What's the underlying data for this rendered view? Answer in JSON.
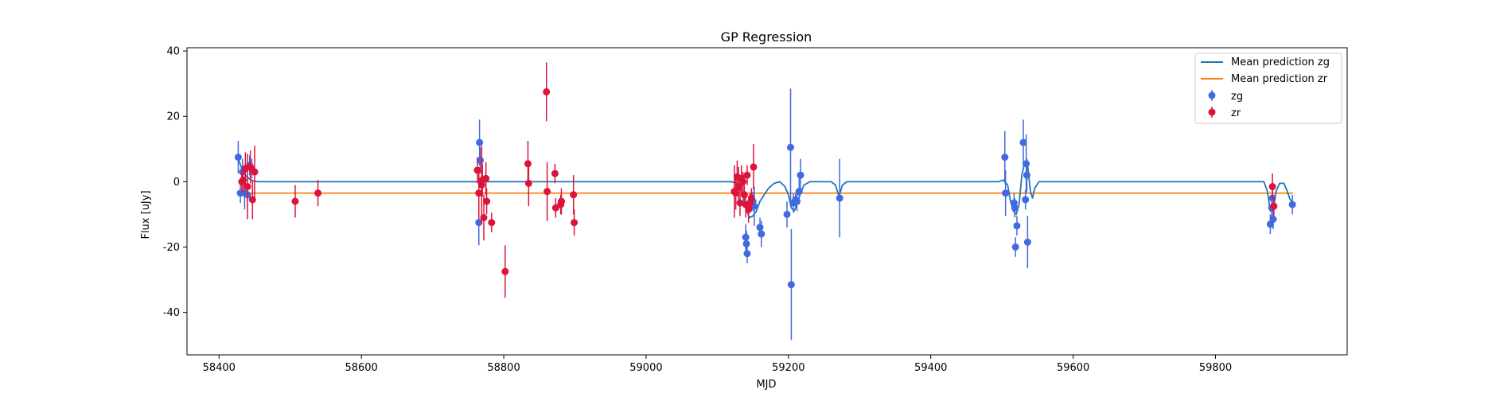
{
  "chart_data": {
    "type": "scatter",
    "title": "GP Regression",
    "xlabel": "MJD",
    "ylabel": "Flux [uJy]",
    "xlim": [
      58355,
      59985
    ],
    "ylim": [
      -53,
      41
    ],
    "xticks": [
      58400,
      58600,
      58800,
      59000,
      59200,
      59400,
      59600,
      59800
    ],
    "yticks": [
      -40,
      -20,
      0,
      20,
      40
    ],
    "grid": false,
    "legend_position": "top-right",
    "colors": {
      "zg": "#4169e1",
      "zr": "#dc143c",
      "mean_zg": "#1f77b4",
      "mean_zr": "#ff7f0e"
    },
    "legend": [
      "Mean prediction zg",
      "Mean prediction zr",
      "zg",
      "zr"
    ],
    "mean_zr_level": -3.5,
    "mean_zg": [
      [
        58427,
        7
      ],
      [
        58432,
        4
      ],
      [
        58437,
        2
      ],
      [
        58442,
        1
      ],
      [
        58448,
        0.2
      ],
      [
        58455,
        0
      ],
      [
        59120,
        0
      ],
      [
        59128,
        -0.5
      ],
      [
        59134,
        -3
      ],
      [
        59140,
        -8
      ],
      [
        59145,
        -11
      ],
      [
        59150,
        -10.5
      ],
      [
        59155,
        -9
      ],
      [
        59160,
        -6
      ],
      [
        59166,
        -4
      ],
      [
        59172,
        -2
      ],
      [
        59180,
        -0.5
      ],
      [
        59188,
        0
      ],
      [
        59195,
        -1.5
      ],
      [
        59200,
        -4
      ],
      [
        59204,
        -8
      ],
      [
        59208,
        -9
      ],
      [
        59212,
        -7
      ],
      [
        59217,
        -3.5
      ],
      [
        59222,
        -1
      ],
      [
        59230,
        0
      ],
      [
        59260,
        0
      ],
      [
        59266,
        -1
      ],
      [
        59271,
        -4.5
      ],
      [
        59276,
        -1
      ],
      [
        59282,
        0
      ],
      [
        59495,
        0
      ],
      [
        59502,
        0.5
      ],
      [
        59508,
        -1
      ],
      [
        59512,
        -6
      ],
      [
        59516,
        -9
      ],
      [
        59520,
        -10
      ],
      [
        59524,
        -7
      ],
      [
        59528,
        2
      ],
      [
        59532,
        6
      ],
      [
        59536,
        5
      ],
      [
        59540,
        -3
      ],
      [
        59543,
        -5
      ],
      [
        59546,
        -2
      ],
      [
        59552,
        0
      ],
      [
        59868,
        0
      ],
      [
        59873,
        -3
      ],
      [
        59877,
        -9
      ],
      [
        59881,
        -9
      ],
      [
        59885,
        -3
      ],
      [
        59890,
        -0.5
      ],
      [
        59896,
        -0.5
      ],
      [
        59900,
        -2.5
      ],
      [
        59905,
        -5.5
      ],
      [
        59909,
        -6.5
      ]
    ],
    "series": [
      {
        "name": "zg",
        "points": [
          [
            58427,
            7.5,
            5
          ],
          [
            58430,
            -3.5,
            3
          ],
          [
            58433,
            3,
            4
          ],
          [
            58436,
            -3.5,
            5
          ],
          [
            58440,
            -4,
            2
          ],
          [
            58443,
            5,
            3
          ],
          [
            58446,
            4,
            3
          ],
          [
            58765,
            -12.5,
            7
          ],
          [
            58766,
            12,
            7
          ],
          [
            58767,
            6.5,
            4
          ],
          [
            59140,
            -17,
            4
          ],
          [
            59141,
            -19,
            4
          ],
          [
            59142,
            -22,
            3
          ],
          [
            59150,
            -6,
            3
          ],
          [
            59152,
            -7.5,
            6
          ],
          [
            59160,
            -14,
            3
          ],
          [
            59162,
            -16,
            4
          ],
          [
            59198,
            -10,
            4
          ],
          [
            59203,
            10.5,
            18
          ],
          [
            59204,
            -31.5,
            17
          ],
          [
            59207,
            -6.5,
            3
          ],
          [
            59210,
            -5.5,
            2
          ],
          [
            59212,
            -6,
            3
          ],
          [
            59215,
            -3,
            4
          ],
          [
            59217,
            2,
            5
          ],
          [
            59272,
            -5,
            12
          ],
          [
            59504,
            7.5,
            8
          ],
          [
            59505,
            -3.5,
            7
          ],
          [
            59517,
            -6.5,
            3
          ],
          [
            59518,
            -8,
            3
          ],
          [
            59519,
            -20,
            3
          ],
          [
            59521,
            -13.5,
            3
          ],
          [
            59530,
            12,
            7
          ],
          [
            59533,
            -5.5,
            3
          ],
          [
            59534,
            5.5,
            9
          ],
          [
            59535,
            2,
            5
          ],
          [
            59536,
            -18.5,
            8
          ],
          [
            59877,
            -13,
            3
          ],
          [
            59879,
            -8,
            3
          ],
          [
            59880,
            -5,
            3
          ],
          [
            59881,
            -11.5,
            3
          ],
          [
            59908,
            -7,
            3
          ]
        ]
      },
      {
        "name": "zr",
        "points": [
          [
            58432,
            0,
            3
          ],
          [
            58434,
            0.5,
            4
          ],
          [
            58437,
            4,
            5
          ],
          [
            58440,
            -1.5,
            10
          ],
          [
            58444,
            4.5,
            5
          ],
          [
            58447,
            -5.5,
            6
          ],
          [
            58450,
            3,
            8
          ],
          [
            58507,
            -6,
            5
          ],
          [
            58539,
            -3.5,
            4
          ],
          [
            58763,
            3.5,
            4
          ],
          [
            58765,
            -3.5,
            8
          ],
          [
            58769,
            -1,
            12
          ],
          [
            58770,
            0.5,
            5
          ],
          [
            58772,
            -11,
            7
          ],
          [
            58775,
            1,
            5
          ],
          [
            58776,
            -6,
            4
          ],
          [
            58783,
            -12.5,
            3
          ],
          [
            58802,
            -27.5,
            8
          ],
          [
            58834,
            5.5,
            7
          ],
          [
            58835,
            -0.5,
            7
          ],
          [
            58860,
            27.5,
            9
          ],
          [
            58861,
            -3,
            9
          ],
          [
            58872,
            2.5,
            3
          ],
          [
            58873,
            -8,
            3
          ],
          [
            58880,
            -7,
            3
          ],
          [
            58881,
            -6,
            4
          ],
          [
            58898,
            -4,
            6
          ],
          [
            58899,
            -12.5,
            4
          ],
          [
            59124,
            -3,
            8
          ],
          [
            59126,
            -3.5,
            5
          ],
          [
            59128,
            1.5,
            5
          ],
          [
            59130,
            -1.5,
            6
          ],
          [
            59132,
            -6.5,
            4
          ],
          [
            59134,
            1,
            4
          ],
          [
            59136,
            0,
            3
          ],
          [
            59138,
            -4,
            3
          ],
          [
            59140,
            -7,
            4
          ],
          [
            59142,
            2,
            3
          ],
          [
            59144,
            -8.5,
            4
          ],
          [
            59146,
            -6.5,
            3
          ],
          [
            59148,
            -5,
            3
          ],
          [
            59151,
            4.5,
            7
          ],
          [
            59880,
            -1.5,
            4
          ],
          [
            59882,
            -7.5,
            3
          ]
        ]
      }
    ]
  }
}
